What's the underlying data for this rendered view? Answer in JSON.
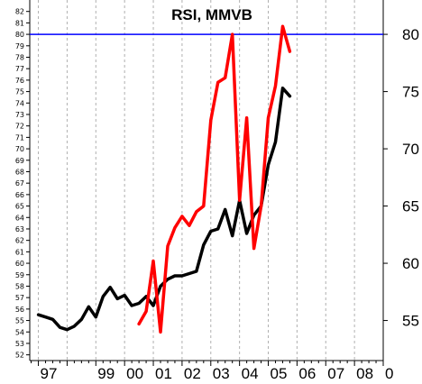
{
  "chart_data": {
    "type": "line",
    "title": "RSI, MMVB",
    "xlabel": "",
    "ylabel": "",
    "x_tick_labels": [
      "97",
      "99",
      "00",
      "01",
      "02",
      "03",
      "04",
      "05",
      "06",
      "07",
      "08",
      "0"
    ],
    "left_y_ticks": [
      52,
      53,
      54,
      55,
      56,
      57,
      58,
      59,
      60,
      61,
      62,
      63,
      64,
      65,
      66,
      67,
      68,
      69,
      70,
      71,
      72,
      73,
      74,
      75,
      76,
      77,
      78,
      79,
      80,
      81,
      82
    ],
    "right_y_ticks": [
      55,
      60,
      65,
      70,
      75,
      80
    ],
    "ylim": [
      51.5,
      83
    ],
    "xlim": [
      1996.7,
      2009.0
    ],
    "grid": {
      "vertical": true,
      "style": "dashed"
    },
    "reference_line": {
      "y": 80,
      "color": "#0000ff"
    },
    "colors": {
      "series_red": "#ff0000",
      "series_black": "#000000"
    },
    "series": [
      {
        "color": "#000000",
        "points": [
          [
            1997.0,
            55.5
          ],
          [
            1997.25,
            55.3
          ],
          [
            1997.5,
            55.1
          ],
          [
            1997.75,
            54.4
          ],
          [
            1998.0,
            54.2
          ],
          [
            1998.25,
            54.5
          ],
          [
            1998.5,
            55.1
          ],
          [
            1998.75,
            56.2
          ],
          [
            1999.0,
            55.3
          ],
          [
            1999.25,
            57.1
          ],
          [
            1999.5,
            57.9
          ],
          [
            1999.75,
            56.9
          ],
          [
            2000.0,
            57.2
          ],
          [
            2000.25,
            56.3
          ],
          [
            2000.5,
            56.5
          ],
          [
            2000.75,
            57.1
          ],
          [
            2001.0,
            56.3
          ],
          [
            2001.25,
            58.0
          ],
          [
            2001.5,
            58.6
          ],
          [
            2001.75,
            58.9
          ],
          [
            2002.0,
            58.9
          ],
          [
            2002.25,
            59.1
          ],
          [
            2002.5,
            59.3
          ],
          [
            2002.75,
            61.6
          ],
          [
            2003.0,
            62.8
          ],
          [
            2003.25,
            63.0
          ],
          [
            2003.5,
            64.7
          ],
          [
            2003.75,
            62.4
          ],
          [
            2004.0,
            65.5
          ],
          [
            2004.25,
            62.6
          ],
          [
            2004.5,
            64.2
          ],
          [
            2004.75,
            65.0
          ],
          [
            2005.0,
            68.6
          ],
          [
            2005.25,
            70.6
          ],
          [
            2005.5,
            75.3
          ],
          [
            2005.75,
            74.6
          ]
        ]
      },
      {
        "color": "#ff0000",
        "points": [
          [
            2000.5,
            54.7
          ],
          [
            2000.75,
            55.8
          ],
          [
            2001.0,
            60.2
          ],
          [
            2001.25,
            54.0
          ],
          [
            2001.5,
            61.5
          ],
          [
            2001.75,
            63.1
          ],
          [
            2002.0,
            64.1
          ],
          [
            2002.25,
            63.3
          ],
          [
            2002.5,
            64.5
          ],
          [
            2002.75,
            65.0
          ],
          [
            2003.0,
            72.5
          ],
          [
            2003.25,
            75.8
          ],
          [
            2003.5,
            76.2
          ],
          [
            2003.75,
            80.0
          ],
          [
            2004.0,
            65.5
          ],
          [
            2004.25,
            72.7
          ],
          [
            2004.5,
            61.3
          ],
          [
            2004.75,
            65.0
          ],
          [
            2005.0,
            72.7
          ],
          [
            2005.25,
            75.5
          ],
          [
            2005.5,
            80.7
          ],
          [
            2005.75,
            78.5
          ]
        ]
      }
    ]
  }
}
